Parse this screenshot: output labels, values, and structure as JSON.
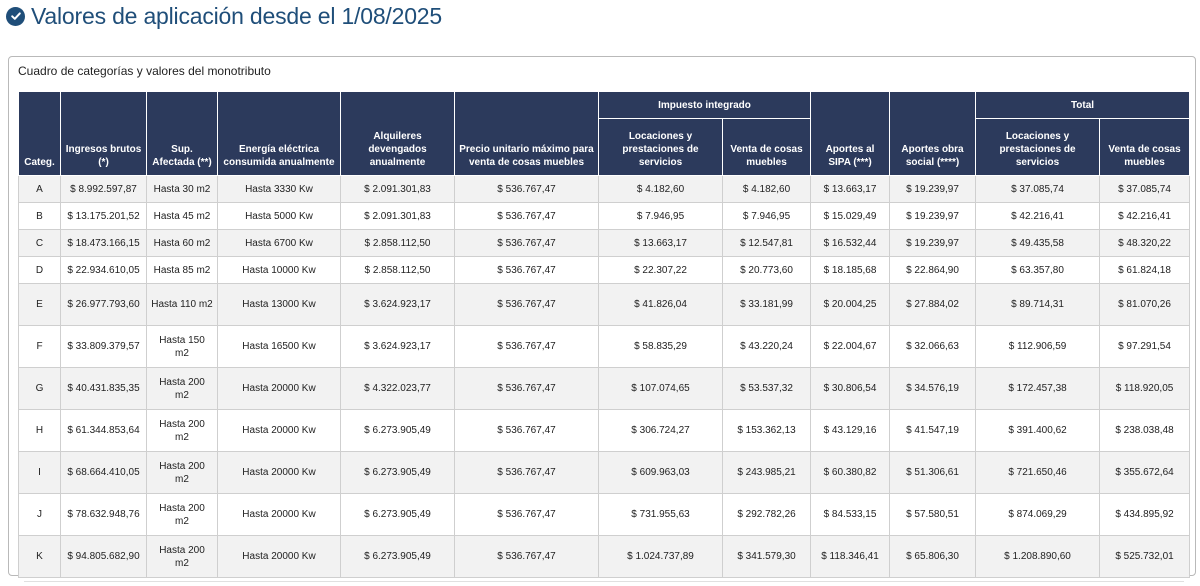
{
  "page": {
    "title": "Valores de aplicación desde el 1/08/2025"
  },
  "panel": {
    "caption": "Cuadro de categorías y valores del monotributo"
  },
  "table": {
    "headers": {
      "categoria": "Categ.",
      "ingresos": "Ingresos brutos (*)",
      "superficie": "Sup. Afectada (**)",
      "energia": "Energía eléctrica consumida anualmente",
      "alquileres": "Alquileres devengados anualmente",
      "precio": "Precio unitario máximo para venta de cosas muebles",
      "impuesto_group": "Impuesto integrado",
      "imp_locaciones": "Locaciones y prestaciones de servicios",
      "imp_venta": "Venta de cosas muebles",
      "sipa": "Aportes al SIPA (***)",
      "obra_social": "Aportes obra social (****)",
      "total_group": "Total",
      "tot_locaciones": "Locaciones y prestaciones de servicios",
      "tot_venta": "Venta de cosas muebles"
    },
    "rows": [
      [
        "A",
        "$ 8.992.597,87",
        "Hasta 30 m2",
        "Hasta 3330 Kw",
        "$ 2.091.301,83",
        "$ 536.767,47",
        "$ 4.182,60",
        "$ 4.182,60",
        "$ 13.663,17",
        "$ 19.239,97",
        "$ 37.085,74",
        "$ 37.085,74"
      ],
      [
        "B",
        "$ 13.175.201,52",
        "Hasta 45 m2",
        "Hasta 5000 Kw",
        "$ 2.091.301,83",
        "$ 536.767,47",
        "$ 7.946,95",
        "$ 7.946,95",
        "$ 15.029,49",
        "$ 19.239,97",
        "$ 42.216,41",
        "$ 42.216,41"
      ],
      [
        "C",
        "$ 18.473.166,15",
        "Hasta 60 m2",
        "Hasta 6700 Kw",
        "$ 2.858.112,50",
        "$ 536.767,47",
        "$ 13.663,17",
        "$ 12.547,81",
        "$ 16.532,44",
        "$ 19.239,97",
        "$ 49.435,58",
        "$ 48.320,22"
      ],
      [
        "D",
        "$ 22.934.610,05",
        "Hasta 85 m2",
        "Hasta 10000 Kw",
        "$ 2.858.112,50",
        "$ 536.767,47",
        "$ 22.307,22",
        "$ 20.773,60",
        "$ 18.185,68",
        "$ 22.864,90",
        "$ 63.357,80",
        "$ 61.824,18"
      ],
      [
        "E",
        "$ 26.977.793,60",
        "Hasta 110 m2",
        "Hasta 13000 Kw",
        "$ 3.624.923,17",
        "$ 536.767,47",
        "$ 41.826,04",
        "$ 33.181,99",
        "$ 20.004,25",
        "$ 27.884,02",
        "$ 89.714,31",
        "$ 81.070,26"
      ],
      [
        "F",
        "$ 33.809.379,57",
        "Hasta 150 m2",
        "Hasta 16500 Kw",
        "$ 3.624.923,17",
        "$ 536.767,47",
        "$ 58.835,29",
        "$ 43.220,24",
        "$ 22.004,67",
        "$ 32.066,63",
        "$ 112.906,59",
        "$ 97.291,54"
      ],
      [
        "G",
        "$ 40.431.835,35",
        "Hasta 200 m2",
        "Hasta 20000 Kw",
        "$ 4.322.023,77",
        "$ 536.767,47",
        "$ 107.074,65",
        "$ 53.537,32",
        "$ 30.806,54",
        "$ 34.576,19",
        "$ 172.457,38",
        "$ 118.920,05"
      ],
      [
        "H",
        "$ 61.344.853,64",
        "Hasta 200 m2",
        "Hasta 20000 Kw",
        "$ 6.273.905,49",
        "$ 536.767,47",
        "$ 306.724,27",
        "$ 153.362,13",
        "$ 43.129,16",
        "$ 41.547,19",
        "$ 391.400,62",
        "$ 238.038,48"
      ],
      [
        "I",
        "$ 68.664.410,05",
        "Hasta 200 m2",
        "Hasta 20000 Kw",
        "$ 6.273.905,49",
        "$ 536.767,47",
        "$ 609.963,03",
        "$ 243.985,21",
        "$ 60.380,82",
        "$ 51.306,61",
        "$ 721.650,46",
        "$ 355.672,64"
      ],
      [
        "J",
        "$ 78.632.948,76",
        "Hasta 200 m2",
        "Hasta 20000 Kw",
        "$ 6.273.905,49",
        "$ 536.767,47",
        "$ 731.955,63",
        "$ 292.782,26",
        "$ 84.533,15",
        "$ 57.580,51",
        "$ 874.069,29",
        "$ 434.895,92"
      ],
      [
        "K",
        "$ 94.805.682,90",
        "Hasta 200 m2",
        "Hasta 20000 Kw",
        "$ 6.273.905,49",
        "$ 536.767,47",
        "$ 1.024.737,89",
        "$ 341.579,30",
        "$ 118.346,41",
        "$ 65.806,30",
        "$ 1.208.890,60",
        "$ 525.732,01"
      ]
    ]
  },
  "colors": {
    "title": "#1f4e79",
    "header_bg": "#2c3a5c",
    "stripe": "#f2f2f2"
  },
  "icons": {
    "title_icon": "check-circle-icon"
  }
}
